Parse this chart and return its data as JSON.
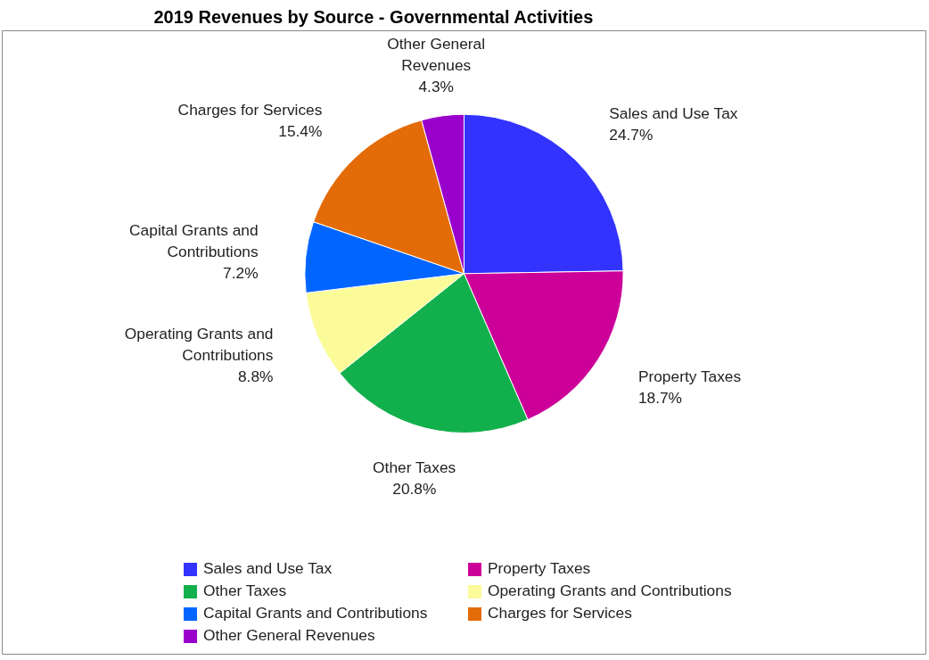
{
  "chart_data": {
    "type": "pie",
    "title": "2019 Revenues by Source - Governmental Activities",
    "categories": [
      "Sales and Use Tax",
      "Property Taxes",
      "Other Taxes",
      "Operating Grants and Contributions",
      "Capital Grants and Contributions",
      "Charges for Services",
      "Other General Revenues"
    ],
    "values": [
      24.7,
      18.7,
      20.8,
      8.8,
      7.2,
      15.4,
      4.3
    ],
    "colors": [
      "#3333ff",
      "#cc0099",
      "#12b04c",
      "#fbfb99",
      "#0066ff",
      "#e36c09",
      "#9900cc"
    ],
    "value_labels": [
      "24.7%",
      "18.7%",
      "20.8%",
      "8.8%",
      "7.2%",
      "15.4%",
      "4.3%"
    ],
    "legend": "bottom"
  }
}
